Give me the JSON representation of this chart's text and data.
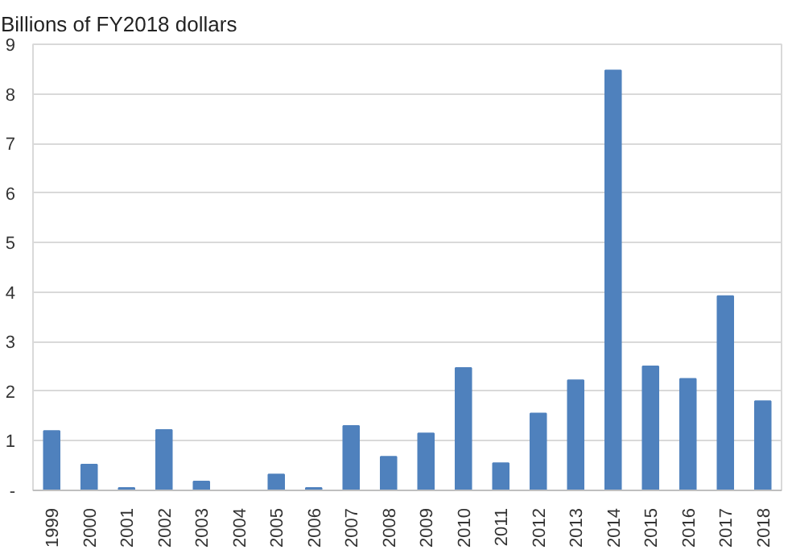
{
  "chart_data": {
    "type": "bar",
    "ylabel": "Billions of FY2018 dollars",
    "categories": [
      "1999",
      "2000",
      "2001",
      "2002",
      "2003",
      "2004",
      "2005",
      "2006",
      "2007",
      "2008",
      "2009",
      "2010",
      "2011",
      "2012",
      "2013",
      "2014",
      "2015",
      "2016",
      "2017",
      "2018"
    ],
    "values": [
      1.2,
      0.52,
      0.05,
      1.22,
      0.18,
      0,
      0.32,
      0.05,
      1.3,
      0.68,
      1.15,
      2.47,
      0.55,
      1.55,
      2.22,
      8.47,
      2.5,
      2.25,
      3.92,
      1.8
    ],
    "color": "#4f81bd",
    "ylim": [
      0,
      9
    ],
    "yticks": [
      {
        "value": 0,
        "label": "-"
      },
      1,
      2,
      3,
      4,
      5,
      6,
      7,
      8,
      9
    ],
    "grid": "y"
  }
}
